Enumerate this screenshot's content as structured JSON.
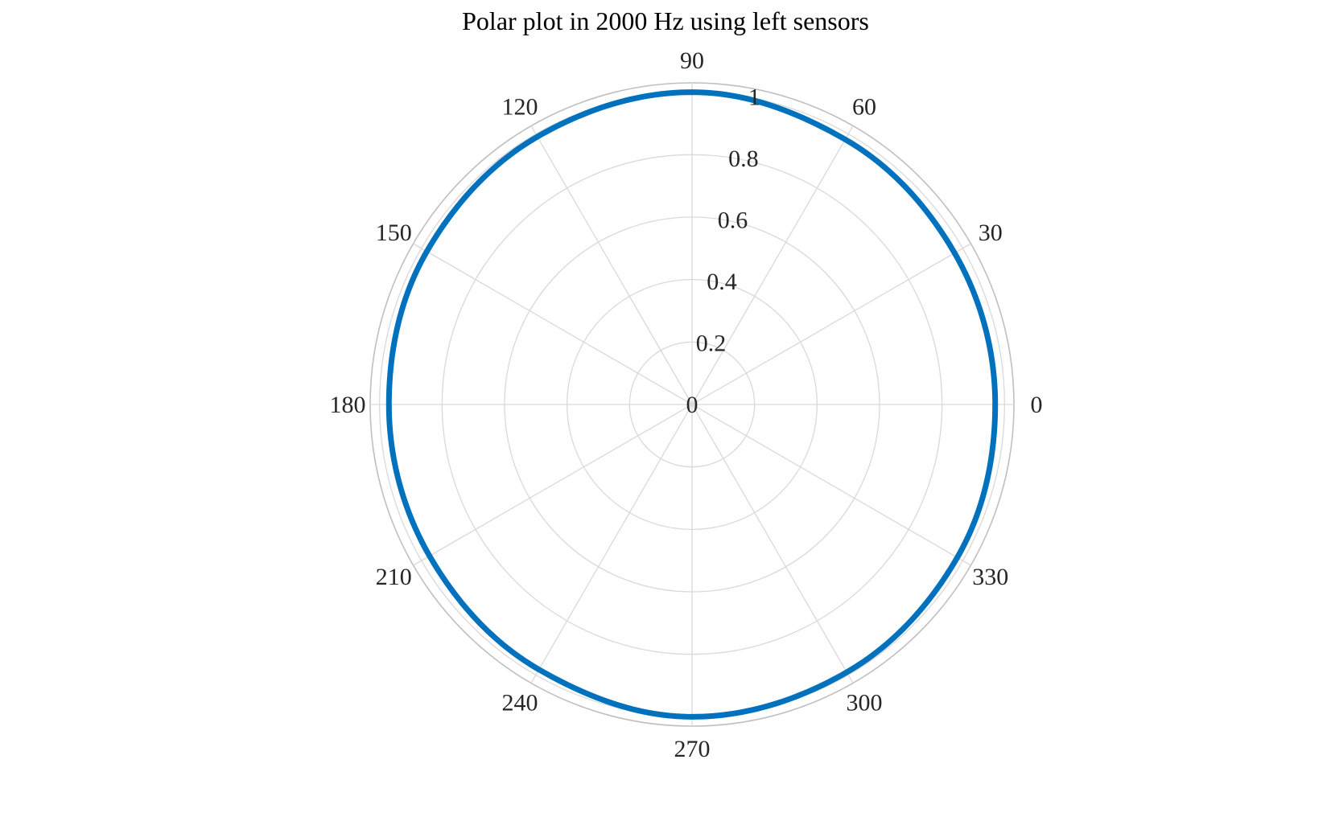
{
  "chart_data": {
    "type": "polar",
    "title": "Polar plot in 2000 Hz using left sensors",
    "theta_ticks": [
      "0",
      "30",
      "60",
      "90",
      "120",
      "150",
      "180",
      "210",
      "240",
      "270",
      "300",
      "330"
    ],
    "theta_tick_values": [
      0,
      30,
      60,
      90,
      120,
      150,
      180,
      210,
      240,
      270,
      300,
      330
    ],
    "r_ticks": [
      "0",
      "0.2",
      "0.4",
      "0.6",
      "0.8",
      "1"
    ],
    "r_tick_values": [
      0,
      0.2,
      0.4,
      0.6,
      0.8,
      1
    ],
    "rlim": [
      0,
      1.03
    ],
    "grid": true,
    "series": [
      {
        "theta": [
          0,
          30,
          60,
          90,
          120,
          150,
          180,
          210,
          240,
          270,
          300,
          330,
          360
        ],
        "r": [
          0.97,
          0.97,
          0.98,
          1.0,
          0.99,
          0.98,
          0.97,
          0.97,
          0.98,
          1.0,
          0.99,
          0.98,
          0.97
        ]
      }
    ]
  },
  "colors": {
    "series": "#0072BD",
    "grid": "#d9d9d9",
    "outer_ring": "#bfbfbf",
    "text": "#262626"
  }
}
